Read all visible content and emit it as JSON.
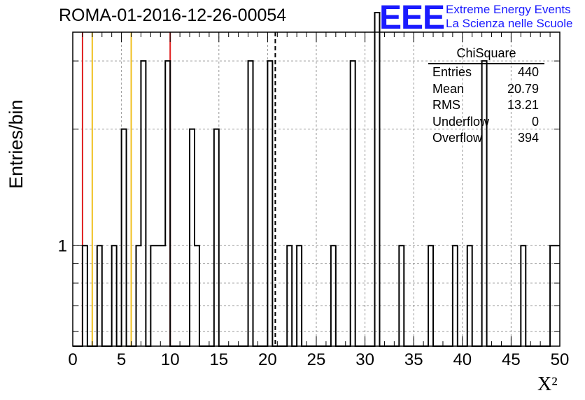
{
  "title": "ROMA-01-2016-12-26-00054",
  "logo": {
    "mark": "EEE",
    "line1": "Extreme Energy Events",
    "line2": "La Scienza nelle Scuole",
    "color": "#1a1aff"
  },
  "stats": {
    "name": "ChiSquare",
    "rows": [
      {
        "label": "Entries",
        "value": "440"
      },
      {
        "label": "Mean",
        "value": "20.79"
      },
      {
        "label": "RMS",
        "value": "13.21"
      },
      {
        "label": "Underflow",
        "value": "0"
      },
      {
        "label": "Overflow",
        "value": "394"
      }
    ]
  },
  "chart_data": {
    "type": "bar",
    "title": "ROMA-01-2016-12-26-00054",
    "xlabel": "X²",
    "ylabel": "Entries/bin",
    "xlim": [
      0,
      50
    ],
    "ylim_log": [
      0.55,
      3.56
    ],
    "log_y": true,
    "grid": true,
    "bin_width": 0.5,
    "x_ticks": [
      "0",
      "5",
      "10",
      "15",
      "20",
      "25",
      "30",
      "35",
      "40",
      "45",
      "50"
    ],
    "y_ticks": [
      "1"
    ],
    "bins": [
      {
        "x": 1.0,
        "y": 1
      },
      {
        "x": 2.5,
        "y": 1
      },
      {
        "x": 4.0,
        "y": 1
      },
      {
        "x": 5.0,
        "y": 2
      },
      {
        "x": 6.5,
        "y": 1
      },
      {
        "x": 7.0,
        "y": 3
      },
      {
        "x": 8.0,
        "y": 1
      },
      {
        "x": 8.5,
        "y": 1
      },
      {
        "x": 9.0,
        "y": 1
      },
      {
        "x": 9.5,
        "y": 3
      },
      {
        "x": 12.0,
        "y": 2
      },
      {
        "x": 12.5,
        "y": 1
      },
      {
        "x": 14.5,
        "y": 2
      },
      {
        "x": 18.0,
        "y": 3
      },
      {
        "x": 20.0,
        "y": 3
      },
      {
        "x": 22.0,
        "y": 1
      },
      {
        "x": 23.0,
        "y": 1
      },
      {
        "x": 26.5,
        "y": 1
      },
      {
        "x": 28.5,
        "y": 3
      },
      {
        "x": 31.0,
        "y": 4
      },
      {
        "x": 33.5,
        "y": 1
      },
      {
        "x": 36.5,
        "y": 1
      },
      {
        "x": 39.0,
        "y": 1
      },
      {
        "x": 40.5,
        "y": 1
      },
      {
        "x": 42.0,
        "y": 3
      },
      {
        "x": 46.0,
        "y": 1
      },
      {
        "x": 49.0,
        "y": 1
      },
      {
        "x": 49.5,
        "y": 1
      }
    ],
    "vlines": [
      {
        "x": 1.0,
        "color": "#e02020",
        "style": "solid"
      },
      {
        "x": 2.0,
        "color": "#f0c020",
        "style": "solid"
      },
      {
        "x": 6.0,
        "color": "#f0c020",
        "style": "solid"
      },
      {
        "x": 10.0,
        "color": "#e02020",
        "style": "solid"
      },
      {
        "x": 20.79,
        "color": "#000000",
        "style": "dashed"
      }
    ]
  }
}
